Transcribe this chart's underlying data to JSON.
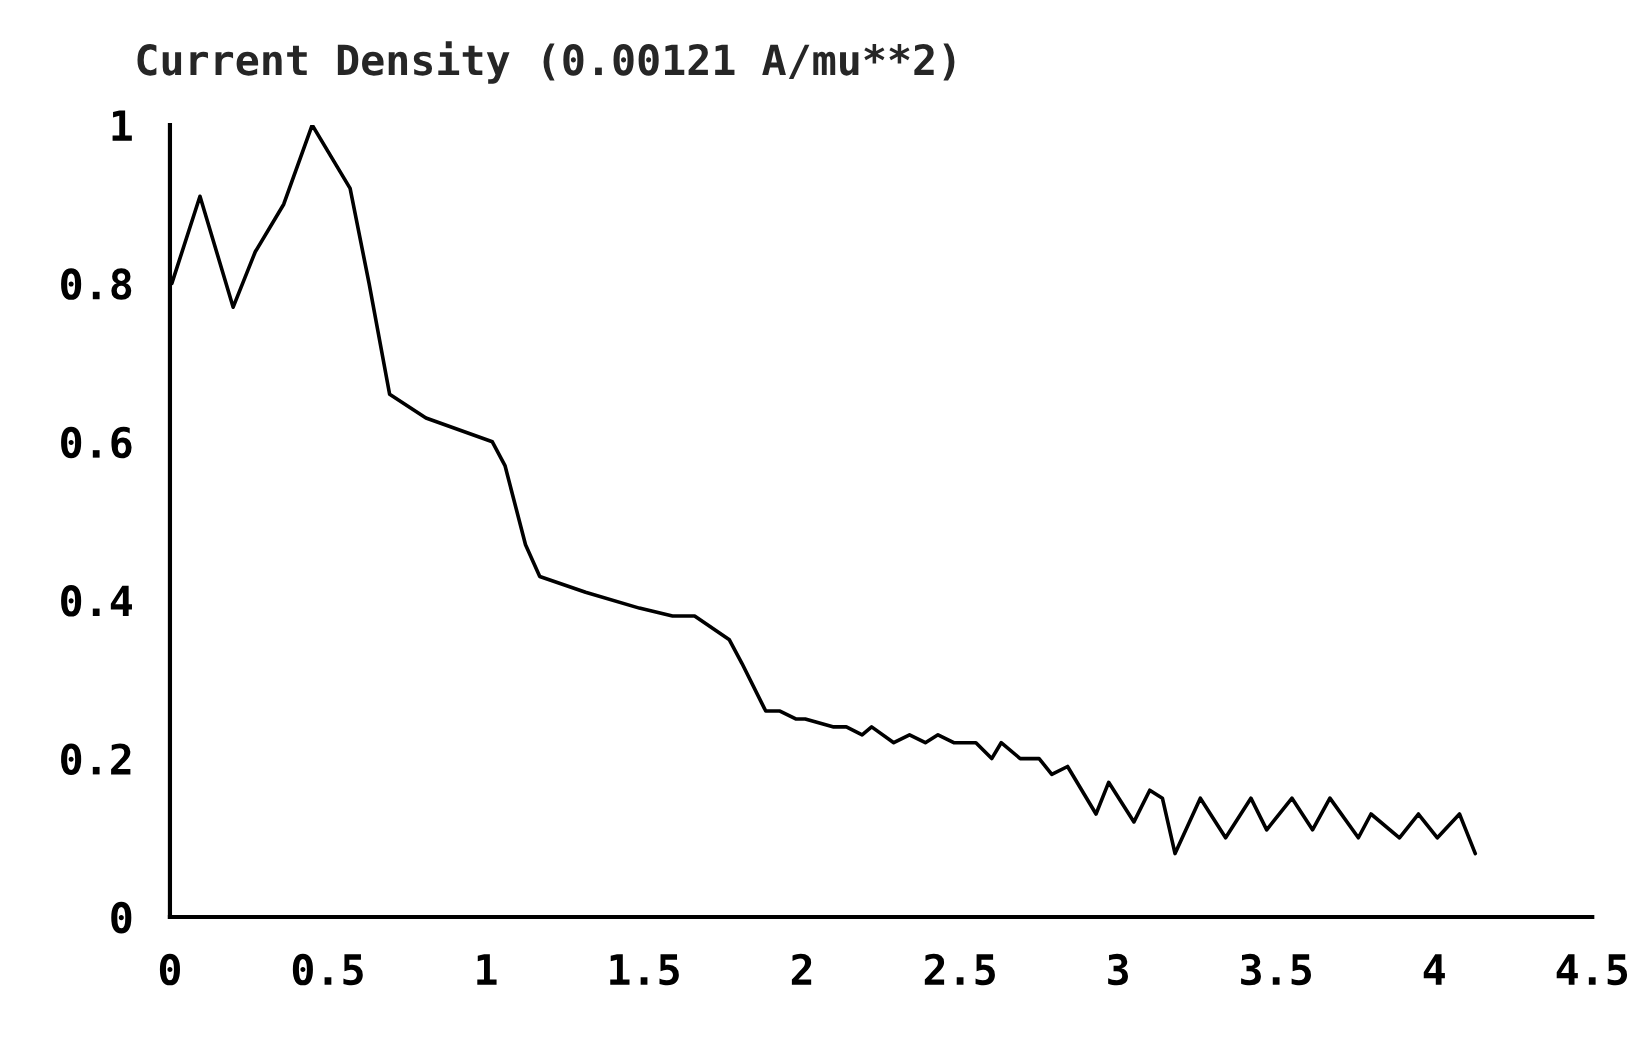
{
  "chart_data": {
    "type": "line",
    "title": "Current Density (0.00121 A/mu**2)",
    "xlim": [
      0,
      4.5
    ],
    "xticks": [
      0,
      0.5,
      1,
      1.5,
      2,
      2.5,
      3,
      3.5,
      4,
      4.5
    ],
    "ylim": [
      0,
      1
    ],
    "yticks": [
      0,
      0.2,
      0.4,
      0.6,
      0.8,
      1
    ],
    "grid": false,
    "marker": "none",
    "line_style": "solid",
    "series": [
      {
        "color": "#000000",
        "x": [
          0.006,
          0.095,
          0.2,
          0.27,
          0.36,
          0.45,
          0.57,
          0.63,
          0.695,
          0.81,
          1.02,
          1.06,
          1.125,
          1.17,
          1.315,
          1.485,
          1.59,
          1.66,
          1.77,
          1.81,
          1.885,
          1.93,
          1.98,
          2.01,
          2.1,
          2.14,
          2.19,
          2.22,
          2.29,
          2.34,
          2.39,
          2.43,
          2.48,
          2.55,
          2.6,
          2.63,
          2.69,
          2.75,
          2.79,
          2.84,
          2.93,
          2.97,
          3.05,
          3.1,
          3.14,
          3.18,
          3.26,
          3.34,
          3.42,
          3.47,
          3.55,
          3.615,
          3.67,
          3.76,
          3.8,
          3.89,
          3.95,
          4.01,
          4.08,
          4.1,
          4.13
        ],
        "values": [
          0.8,
          0.91,
          0.77,
          0.84,
          0.9,
          1.0,
          0.92,
          0.8,
          0.66,
          0.63,
          0.6,
          0.57,
          0.47,
          0.43,
          0.41,
          0.39,
          0.38,
          0.38,
          0.35,
          0.32,
          0.26,
          0.26,
          0.25,
          0.25,
          0.24,
          0.24,
          0.23,
          0.24,
          0.22,
          0.23,
          0.22,
          0.23,
          0.22,
          0.22,
          0.2,
          0.22,
          0.2,
          0.2,
          0.18,
          0.19,
          0.13,
          0.17,
          0.12,
          0.16,
          0.15,
          0.08,
          0.15,
          0.1,
          0.15,
          0.11,
          0.15,
          0.11,
          0.15,
          0.1,
          0.13,
          0.1,
          0.13,
          0.1,
          0.13,
          0.11,
          0.08
        ]
      }
    ]
  }
}
